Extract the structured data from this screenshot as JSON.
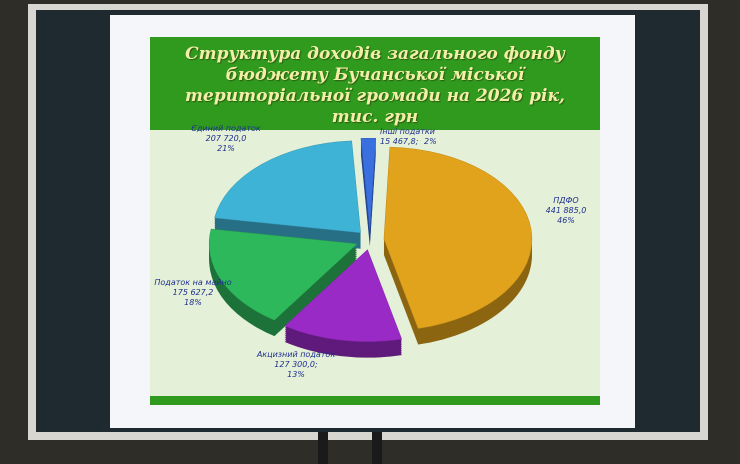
{
  "chart_data": {
    "type": "pie",
    "title": "Структура доходів загального фонду бюджету Бучанської міської територіальної громади на 2026 рік, тис. грн",
    "categories": [
      "ПДФО",
      "Акцизний податок",
      "Податок на майно",
      "Єдиний податок",
      "Інші податки"
    ],
    "values": [
      441885.0,
      127300.0,
      175627.2,
      207720.0,
      15467.8
    ],
    "value_labels": [
      "441 885,0",
      "127 300,0;",
      "175 627,2",
      "207 720,0",
      "15 467,8;"
    ],
    "percent_labels": [
      "46%",
      "13%",
      "18%",
      "21%",
      "2%"
    ],
    "colors": [
      "#e2a31c",
      "#9a2ac6",
      "#2eb85c",
      "#3fb3d6",
      "#3a6fe0"
    ]
  }
}
